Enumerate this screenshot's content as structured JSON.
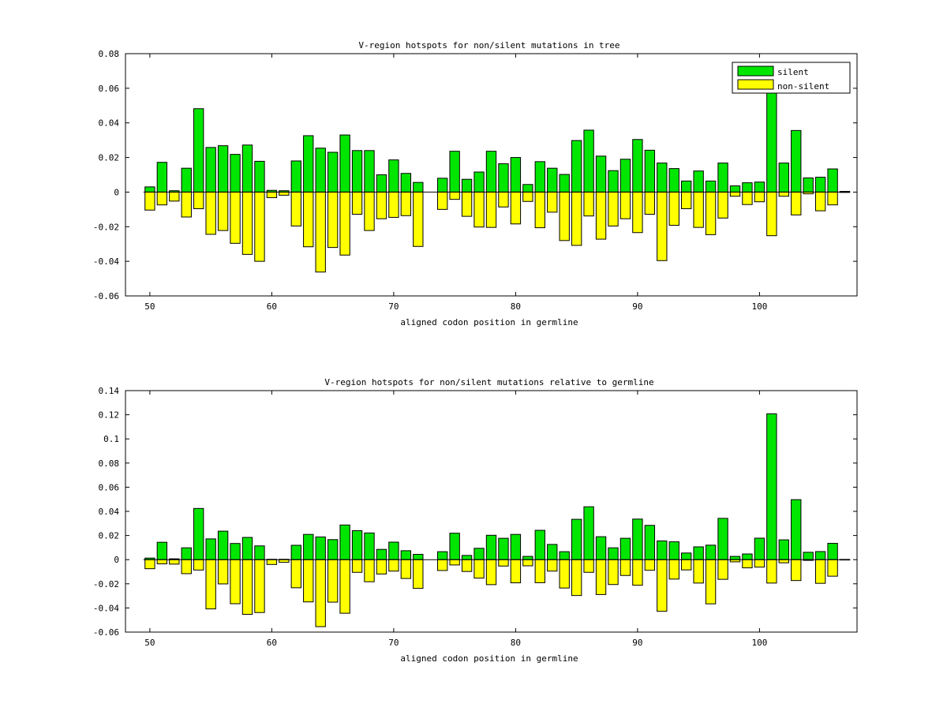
{
  "chart_data": [
    {
      "type": "bar",
      "title": "V-region hotspots for non/silent mutations in tree",
      "xlabel": "aligned codon position in germline",
      "ylabel": "",
      "xlim": [
        48,
        108
      ],
      "ylim": [
        -0.06,
        0.08
      ],
      "xticks": [
        50,
        60,
        70,
        80,
        90,
        100
      ],
      "xtick_labels": [
        "50",
        "60",
        "70",
        "80",
        "90",
        "100"
      ],
      "yticks": [
        -0.06,
        -0.04,
        -0.02,
        0,
        0.02,
        0.04,
        0.06,
        0.08
      ],
      "ytick_labels": [
        "-0.06",
        "-0.04",
        "-0.02",
        "0",
        "0.02",
        "0.04",
        "0.06",
        "0.08"
      ],
      "legend": {
        "position": "top-right",
        "entries": [
          "silent",
          "non-silent"
        ]
      },
      "x": [
        50,
        51,
        52,
        53,
        54,
        55,
        56,
        57,
        58,
        59,
        60,
        61,
        62,
        63,
        64,
        65,
        66,
        67,
        68,
        69,
        70,
        71,
        72,
        73,
        74,
        75,
        76,
        77,
        78,
        79,
        80,
        81,
        82,
        83,
        84,
        85,
        86,
        87,
        88,
        89,
        90,
        91,
        92,
        93,
        94,
        95,
        96,
        97,
        98,
        99,
        100,
        101,
        102,
        103,
        104,
        105,
        106,
        107
      ],
      "series": [
        {
          "name": "silent",
          "color": "#00e600",
          "values": [
            0.003,
            0.0172,
            0.0008,
            0.0138,
            0.0482,
            0.0258,
            0.0268,
            0.0218,
            0.0272,
            0.0178,
            0.001,
            0.0008,
            0.018,
            0.0326,
            0.0254,
            0.023,
            0.033,
            0.024,
            0.024,
            0.01,
            0.0186,
            0.0108,
            0.0056,
            0,
            0.008,
            0.0236,
            0.0074,
            0.0116,
            0.0236,
            0.0164,
            0.02,
            0.0044,
            0.0176,
            0.0138,
            0.0102,
            0.0298,
            0.0358,
            0.0208,
            0.0124,
            0.019,
            0.0304,
            0.0242,
            0.0168,
            0.0136,
            0.0064,
            0.0122,
            0.0064,
            0.0168,
            0.0036,
            0.0054,
            0.0058,
            0.0586,
            0.0168,
            0.0356,
            0.0082,
            0.0086,
            0.0134,
            0.0004
          ]
        },
        {
          "name": "non-silent",
          "color": "#ffff00",
          "values": [
            -0.0104,
            -0.0074,
            -0.0052,
            -0.0144,
            -0.0096,
            -0.0244,
            -0.0222,
            -0.0296,
            -0.036,
            -0.04,
            -0.0032,
            -0.0018,
            -0.0196,
            -0.0316,
            -0.0462,
            -0.032,
            -0.0364,
            -0.0128,
            -0.0222,
            -0.0154,
            -0.0146,
            -0.0136,
            -0.0314,
            0,
            -0.01,
            -0.0042,
            -0.014,
            -0.0202,
            -0.0204,
            -0.0086,
            -0.0184,
            -0.0054,
            -0.0206,
            -0.0116,
            -0.028,
            -0.0308,
            -0.0138,
            -0.0272,
            -0.0196,
            -0.0154,
            -0.0234,
            -0.0128,
            -0.0396,
            -0.0192,
            -0.0096,
            -0.0204,
            -0.0246,
            -0.015,
            -0.0024,
            -0.0072,
            -0.0056,
            -0.0252,
            -0.0024,
            -0.0132,
            -0.001,
            -0.0108,
            -0.0074,
            -0.0002
          ]
        }
      ]
    },
    {
      "type": "bar",
      "title": "V-region hotspots for non/silent mutations relative to germline",
      "xlabel": "aligned codon position in germline",
      "ylabel": "",
      "xlim": [
        48,
        108
      ],
      "ylim": [
        -0.06,
        0.14
      ],
      "xticks": [
        50,
        60,
        70,
        80,
        90,
        100
      ],
      "xtick_labels": [
        "50",
        "60",
        "70",
        "80",
        "90",
        "100"
      ],
      "yticks": [
        -0.06,
        -0.04,
        -0.02,
        0,
        0.02,
        0.04,
        0.06,
        0.08,
        0.1,
        0.12,
        0.14
      ],
      "ytick_labels": [
        "-0.06",
        "-0.04",
        "-0.02",
        "0",
        "0.02",
        "0.04",
        "0.06",
        "0.08",
        "0.1",
        "0.12",
        "0.14"
      ],
      "x": [
        50,
        51,
        52,
        53,
        54,
        55,
        56,
        57,
        58,
        59,
        60,
        61,
        62,
        63,
        64,
        65,
        66,
        67,
        68,
        69,
        70,
        71,
        72,
        73,
        74,
        75,
        76,
        77,
        78,
        79,
        80,
        81,
        82,
        83,
        84,
        85,
        86,
        87,
        88,
        89,
        90,
        91,
        92,
        93,
        94,
        95,
        96,
        97,
        98,
        99,
        100,
        101,
        102,
        103,
        104,
        105,
        106,
        107
      ],
      "series": [
        {
          "name": "silent",
          "color": "#00e600",
          "values": [
            0.0013,
            0.0144,
            0.0007,
            0.0098,
            0.0424,
            0.0172,
            0.0236,
            0.0134,
            0.0184,
            0.0114,
            0.0003,
            0.0003,
            0.0119,
            0.0209,
            0.0188,
            0.0166,
            0.0287,
            0.024,
            0.0221,
            0.0085,
            0.0145,
            0.0074,
            0.0044,
            0,
            0.0066,
            0.0219,
            0.0035,
            0.0094,
            0.0202,
            0.0177,
            0.0209,
            0.0027,
            0.0243,
            0.0126,
            0.0066,
            0.0334,
            0.0438,
            0.019,
            0.0098,
            0.0177,
            0.0336,
            0.0284,
            0.0155,
            0.0148,
            0.0055,
            0.0106,
            0.012,
            0.0342,
            0.0027,
            0.0047,
            0.0178,
            0.1208,
            0.0164,
            0.0497,
            0.0061,
            0.0067,
            0.0135,
            0.0002
          ]
        },
        {
          "name": "non-silent",
          "color": "#ffff00",
          "values": [
            -0.0075,
            -0.0035,
            -0.0037,
            -0.0116,
            -0.0086,
            -0.0408,
            -0.0201,
            -0.0365,
            -0.0453,
            -0.0438,
            -0.004,
            -0.0022,
            -0.0233,
            -0.035,
            -0.0555,
            -0.0352,
            -0.0444,
            -0.0105,
            -0.0183,
            -0.0119,
            -0.0095,
            -0.0156,
            -0.0238,
            0,
            -0.009,
            -0.0044,
            -0.0098,
            -0.0153,
            -0.0207,
            -0.0053,
            -0.0192,
            -0.0051,
            -0.0191,
            -0.0095,
            -0.0235,
            -0.0297,
            -0.0105,
            -0.0289,
            -0.0206,
            -0.0131,
            -0.0212,
            -0.0088,
            -0.0428,
            -0.0161,
            -0.0085,
            -0.0194,
            -0.0366,
            -0.0163,
            -0.0018,
            -0.0068,
            -0.0062,
            -0.0194,
            -0.0026,
            -0.0173,
            -0.0006,
            -0.0196,
            -0.0137,
            -0.0003
          ]
        }
      ]
    }
  ]
}
